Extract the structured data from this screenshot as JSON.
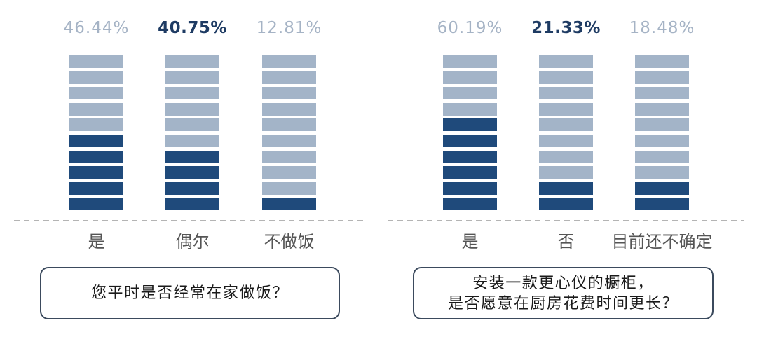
{
  "colors": {
    "block_empty": "#a3b4c8",
    "block_filled": "#1f4a7b",
    "value_label": "#a5b3c5",
    "value_label_highlight": "#1e3b63",
    "category_label": "#555555",
    "box_border": "#3b4a5d"
  },
  "chart_data": [
    {
      "type": "bar",
      "categories": [
        "是",
        "偶尔",
        "不做饭"
      ],
      "values": [
        46.44,
        40.75,
        12.81
      ],
      "value_labels": [
        "46.44%",
        "40.75%",
        "12.81%"
      ],
      "highlight_index": 1,
      "question": [
        "您平时是否经常在家做饭？"
      ]
    },
    {
      "type": "bar",
      "categories": [
        "是",
        "否",
        "目前还不确定"
      ],
      "values": [
        60.19,
        21.33,
        18.48
      ],
      "value_labels": [
        "60.19%",
        "21.33%",
        "18.48%"
      ],
      "highlight_index": 1,
      "question": [
        "安装一款更心仪的橱柜，",
        "是否愿意在厨房花费时间更长？"
      ]
    }
  ]
}
